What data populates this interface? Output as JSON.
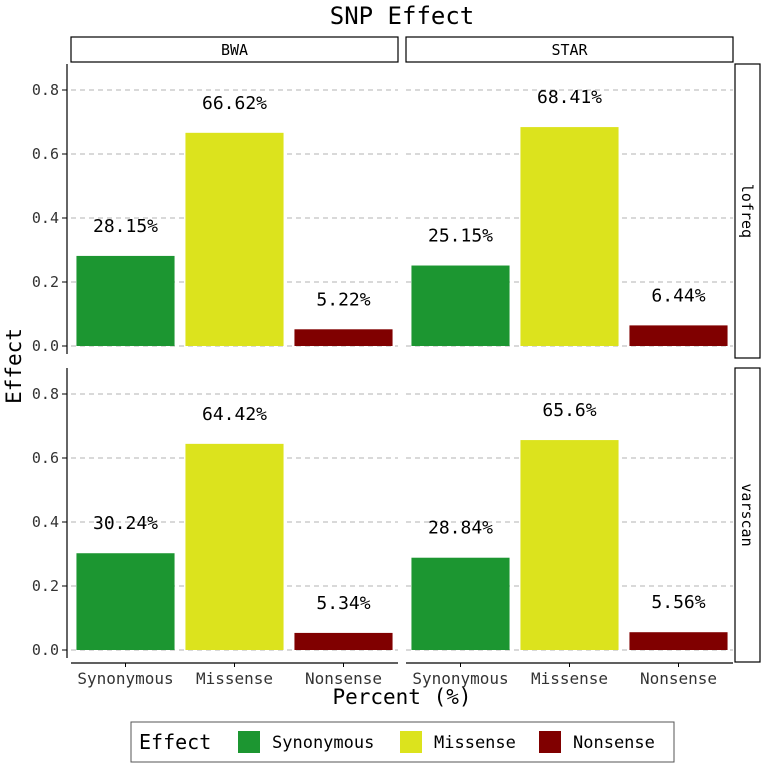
{
  "chart_data": {
    "type": "bar",
    "title": "SNP Effect",
    "xlabel": "Percent (%)",
    "ylabel": "Effect",
    "ylim": [
      0,
      0.85
    ],
    "yticks": [
      "0.0",
      "0.2",
      "0.4",
      "0.6",
      "0.8"
    ],
    "categories": [
      "Synonymous",
      "Missense",
      "Nonsense"
    ],
    "colors": {
      "Synonymous": "#1c9631",
      "Missense": "#dce31d",
      "Nonsense": "#800000"
    },
    "grid": "horizontal dashed",
    "facet_columns": [
      "BWA",
      "STAR"
    ],
    "facet_rows": [
      "lofreq",
      "varscan"
    ],
    "panels": [
      {
        "column": "BWA",
        "row": "lofreq",
        "values": [
          0.2815,
          0.6662,
          0.0522
        ],
        "labels": [
          "28.15%",
          "66.62%",
          "5.22%"
        ]
      },
      {
        "column": "STAR",
        "row": "lofreq",
        "values": [
          0.2515,
          0.6841,
          0.0644
        ],
        "labels": [
          "25.15%",
          "68.41%",
          "6.44%"
        ]
      },
      {
        "column": "BWA",
        "row": "varscan",
        "values": [
          0.3024,
          0.6442,
          0.0534
        ],
        "labels": [
          "30.24%",
          "64.42%",
          "5.34%"
        ]
      },
      {
        "column": "STAR",
        "row": "varscan",
        "values": [
          0.2884,
          0.656,
          0.0556
        ],
        "labels": [
          "28.84%",
          "65.6%",
          "5.56%"
        ]
      }
    ],
    "legend": {
      "title": "Effect",
      "position": "bottom",
      "items": [
        "Synonymous",
        "Missense",
        "Nonsense"
      ]
    }
  }
}
